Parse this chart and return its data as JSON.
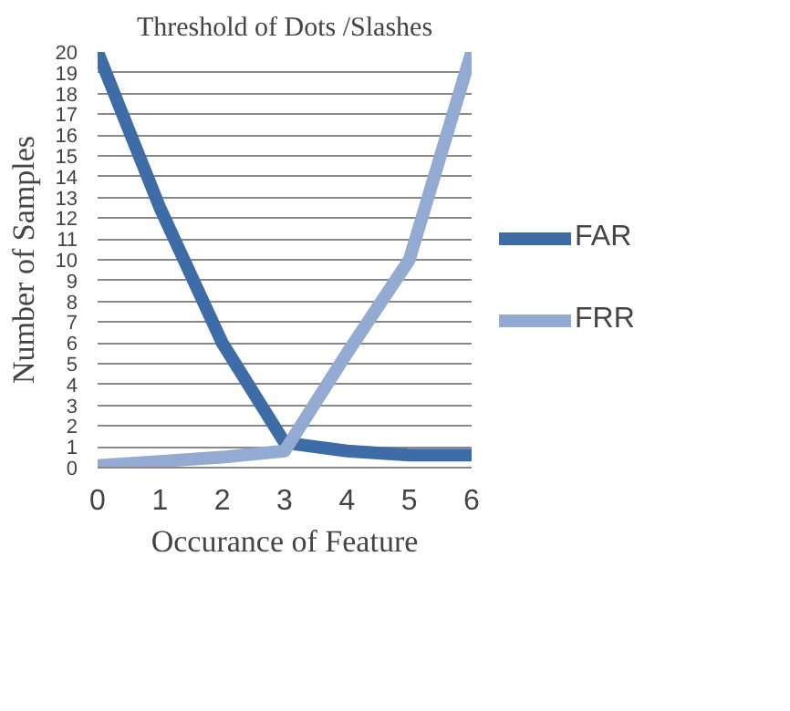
{
  "chart_data": {
    "type": "line",
    "title": "Threshold of Dots /Slashes",
    "xlabel": "Occurance of Feature",
    "ylabel": "Number of Samples",
    "x": [
      0,
      1,
      2,
      3,
      4,
      5,
      6
    ],
    "series": [
      {
        "name": "FAR",
        "color": "#3e6ca6",
        "values": [
          20,
          12.5,
          6,
          1.2,
          0.8,
          0.6,
          0.6
        ]
      },
      {
        "name": "FRR",
        "color": "#93aad3",
        "values": [
          0.1,
          0.3,
          0.5,
          0.8,
          5.5,
          10,
          20
        ]
      }
    ],
    "xlim": [
      0,
      6
    ],
    "xticks": [
      0,
      1,
      2,
      3,
      4,
      5,
      6
    ],
    "ylim": [
      0,
      20
    ],
    "yticks": [
      0,
      1,
      2,
      3,
      4,
      5,
      6,
      7,
      8,
      9,
      10,
      11,
      12,
      13,
      14,
      15,
      16,
      17,
      18,
      19,
      20
    ],
    "grid": "y",
    "legend": "right",
    "marker": "none",
    "line_style": "solid"
  }
}
